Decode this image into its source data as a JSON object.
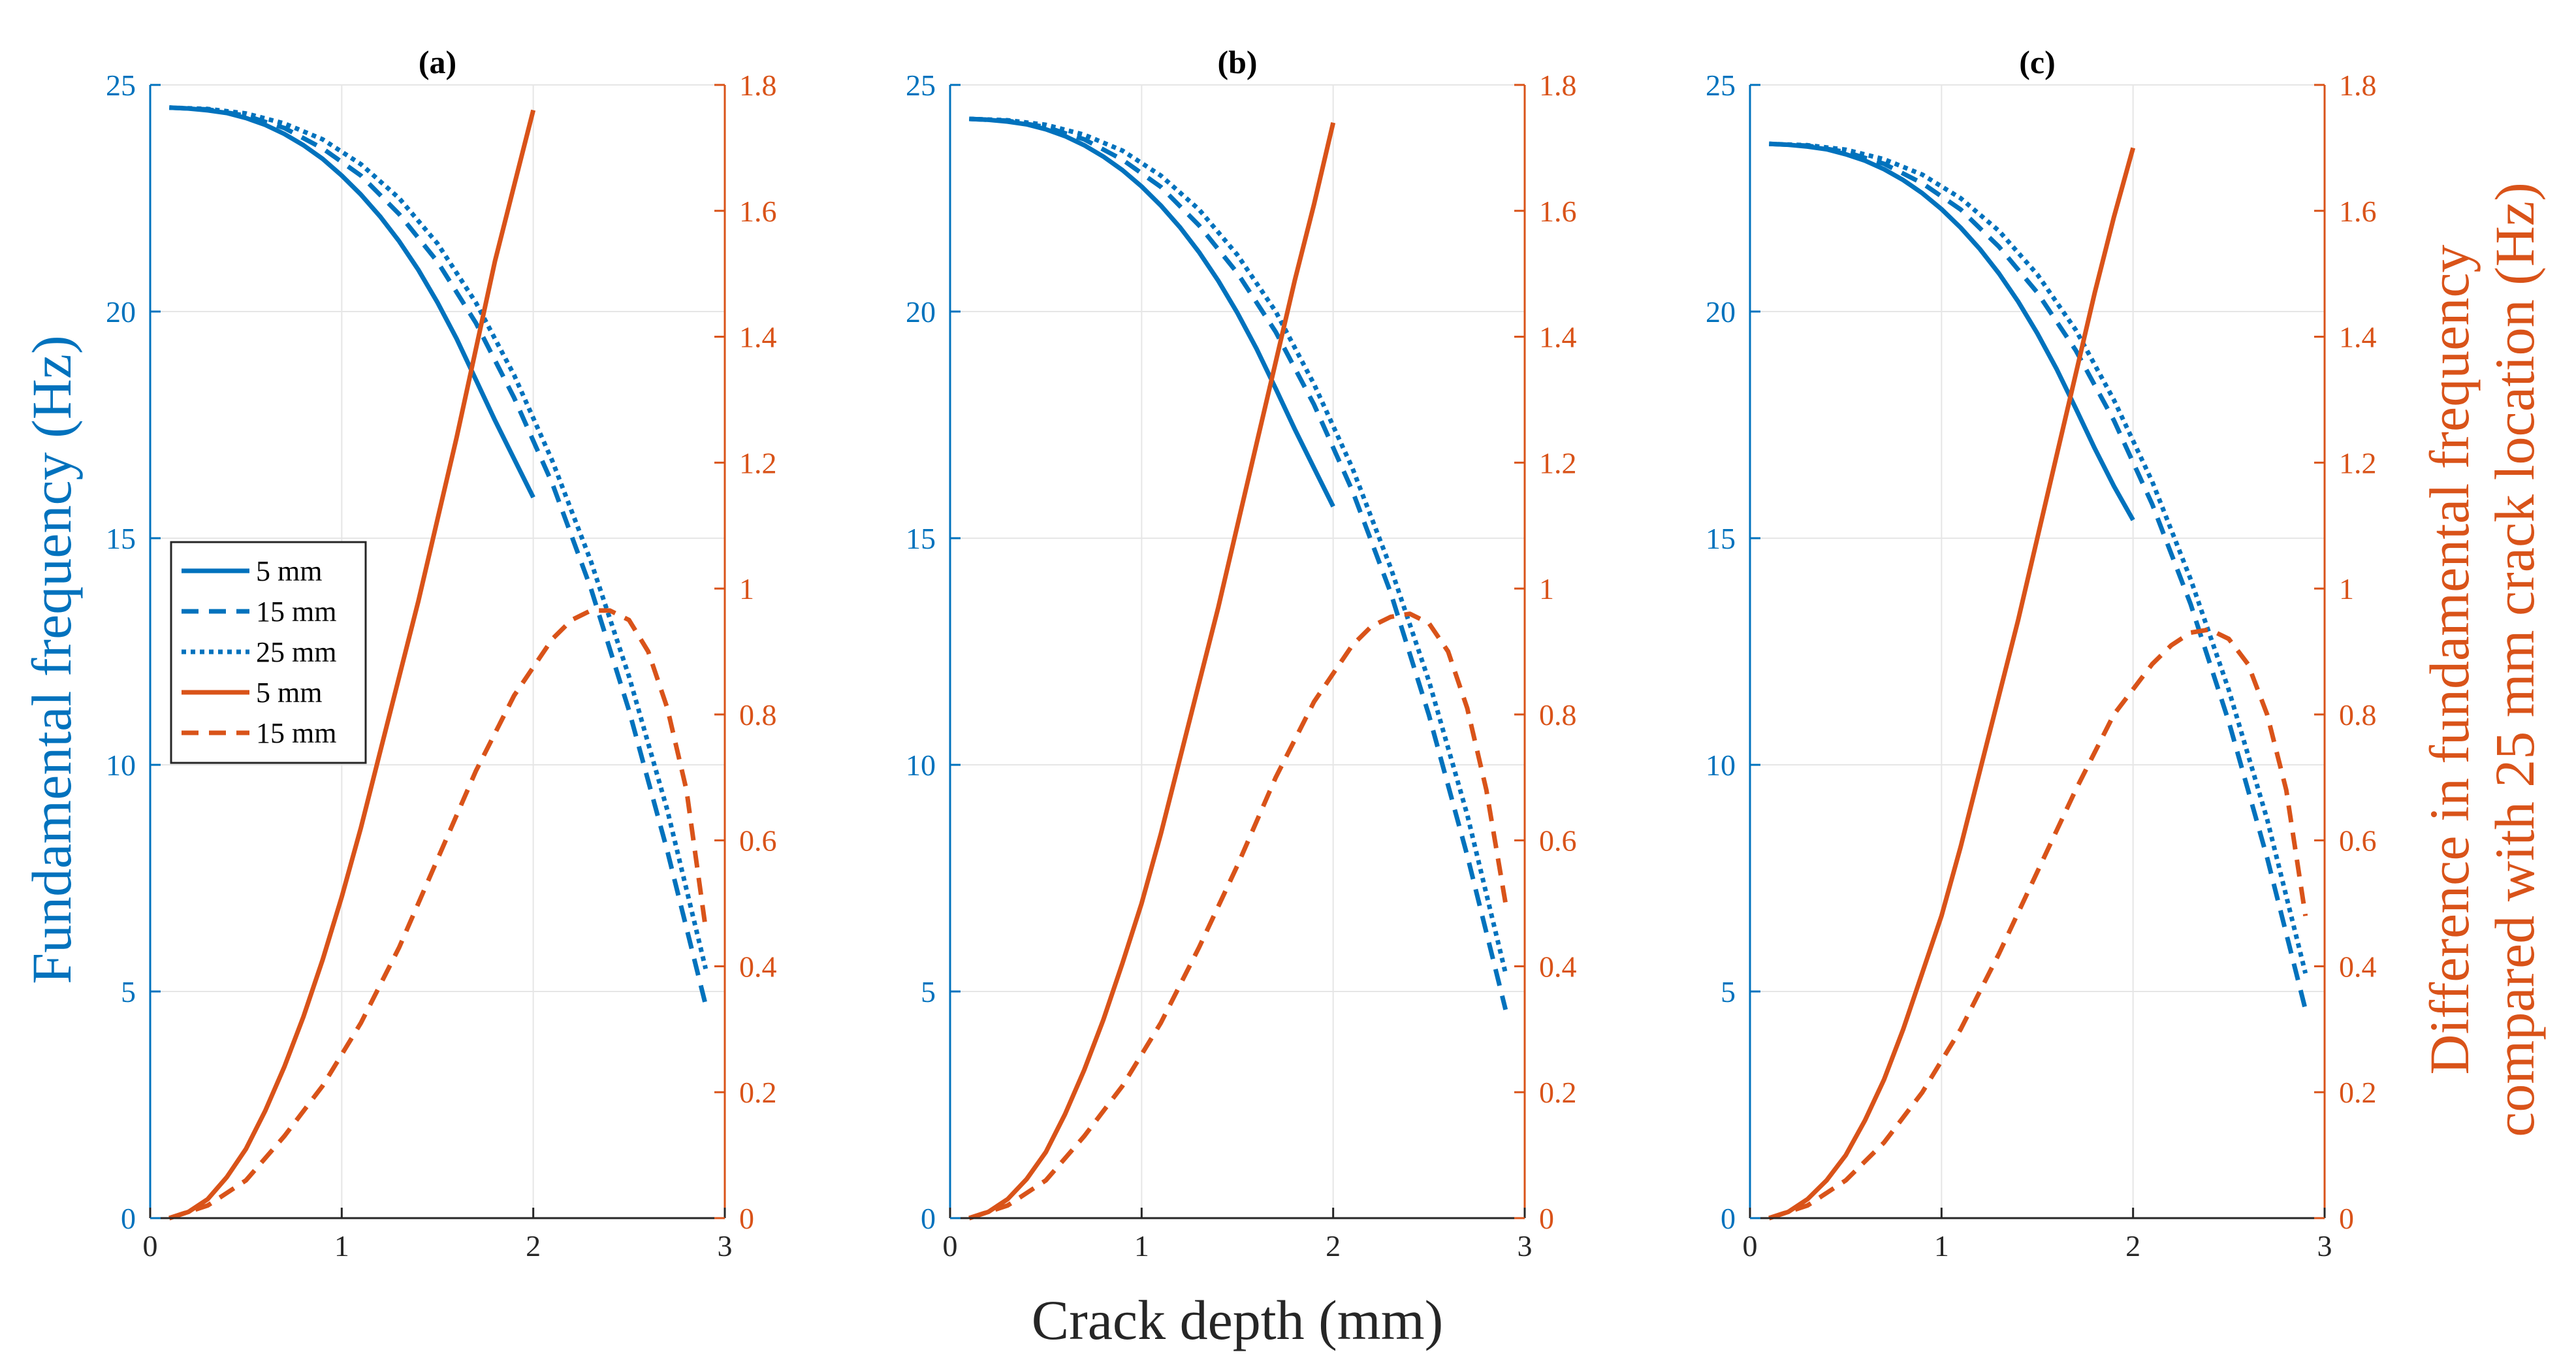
{
  "figure": {
    "xlabel": "Crack depth (mm)",
    "ylabel_left": "Fundamental frequency (Hz)",
    "ylabel_right_line1": "Difference in fundamental frequency",
    "ylabel_right_line2": "compared with 25 mm crack location (Hz)",
    "colors": {
      "left": "#0072BD",
      "right": "#D95319",
      "grid": "#e6e6e6"
    }
  },
  "legend": {
    "entries": [
      {
        "label": "5 mm",
        "color": "#0072BD",
        "style": "solid"
      },
      {
        "label": "15 mm",
        "color": "#0072BD",
        "style": "dashed"
      },
      {
        "label": "25 mm",
        "color": "#0072BD",
        "style": "dotted"
      },
      {
        "label": "5 mm",
        "color": "#D95319",
        "style": "solid"
      },
      {
        "label": "15 mm",
        "color": "#D95319",
        "style": "dashed"
      }
    ]
  },
  "chart_data": [
    {
      "type": "line",
      "title": "(a)",
      "xlim": [
        0,
        3
      ],
      "xticks": [
        0,
        1,
        2,
        3
      ],
      "ylim_left": [
        0,
        25
      ],
      "yticks_left": [
        0,
        5,
        10,
        15,
        20,
        25
      ],
      "ylim_right": [
        0,
        1.8
      ],
      "yticks_right": [
        0,
        0.2,
        0.4,
        0.6,
        0.8,
        1,
        1.2,
        1.4,
        1.6,
        1.8
      ],
      "grid": true,
      "left_series": [
        {
          "name": "5 mm",
          "style": "solid",
          "x": [
            0.1,
            0.2,
            0.3,
            0.4,
            0.5,
            0.6,
            0.7,
            0.8,
            0.9,
            1.0,
            1.1,
            1.2,
            1.3,
            1.4,
            1.5,
            1.6,
            1.7,
            1.8,
            1.9,
            2.0
          ],
          "y": [
            24.5,
            24.48,
            24.44,
            24.38,
            24.27,
            24.12,
            23.92,
            23.67,
            23.37,
            23.0,
            22.58,
            22.1,
            21.55,
            20.92,
            20.2,
            19.4,
            18.5,
            17.6,
            16.75,
            15.9
          ]
        },
        {
          "name": "15 mm",
          "style": "dashed",
          "x": [
            0.1,
            0.3,
            0.5,
            0.7,
            0.9,
            1.1,
            1.3,
            1.5,
            1.7,
            1.9,
            2.1,
            2.3,
            2.5,
            2.7,
            2.9
          ],
          "y": [
            24.5,
            24.46,
            24.32,
            24.05,
            23.6,
            23.0,
            22.15,
            21.1,
            19.75,
            18.1,
            16.2,
            13.9,
            11.2,
            8.1,
            4.7
          ]
        },
        {
          "name": "25 mm",
          "style": "dotted",
          "x": [
            0.1,
            0.3,
            0.5,
            0.7,
            0.9,
            1.1,
            1.3,
            1.5,
            1.7,
            1.9,
            2.1,
            2.3,
            2.5,
            2.7,
            2.9
          ],
          "y": [
            24.5,
            24.47,
            24.37,
            24.15,
            23.8,
            23.25,
            22.5,
            21.5,
            20.2,
            18.6,
            16.7,
            14.5,
            11.95,
            9.0,
            5.5
          ]
        }
      ],
      "right_series": [
        {
          "name": "5 mm",
          "style": "solid",
          "x": [
            0.1,
            0.2,
            0.3,
            0.4,
            0.5,
            0.6,
            0.7,
            0.8,
            0.9,
            1.0,
            1.1,
            1.2,
            1.3,
            1.4,
            1.5,
            1.6,
            1.7,
            1.8,
            1.9,
            2.0
          ],
          "y": [
            0.0,
            0.01,
            0.03,
            0.065,
            0.11,
            0.17,
            0.24,
            0.32,
            0.41,
            0.51,
            0.62,
            0.74,
            0.86,
            0.98,
            1.11,
            1.24,
            1.38,
            1.52,
            1.64,
            1.76
          ]
        },
        {
          "name": "15 mm",
          "style": "dashed",
          "x": [
            0.1,
            0.3,
            0.5,
            0.7,
            0.9,
            1.1,
            1.3,
            1.5,
            1.7,
            1.9,
            2.1,
            2.2,
            2.3,
            2.4,
            2.5,
            2.6,
            2.7,
            2.8,
            2.9
          ],
          "y": [
            0.0,
            0.02,
            0.06,
            0.13,
            0.21,
            0.31,
            0.43,
            0.57,
            0.71,
            0.83,
            0.92,
            0.95,
            0.965,
            0.965,
            0.95,
            0.9,
            0.81,
            0.68,
            0.46
          ]
        }
      ]
    },
    {
      "type": "line",
      "title": "(b)",
      "xlim": [
        0,
        3
      ],
      "xticks": [
        0,
        1,
        2,
        3
      ],
      "ylim_left": [
        0,
        25
      ],
      "yticks_left": [
        0,
        5,
        10,
        15,
        20,
        25
      ],
      "ylim_right": [
        0,
        1.8
      ],
      "yticks_right": [
        0,
        0.2,
        0.4,
        0.6,
        0.8,
        1,
        1.2,
        1.4,
        1.6,
        1.8
      ],
      "grid": true,
      "left_series": [
        {
          "name": "5 mm",
          "style": "solid",
          "x": [
            0.1,
            0.2,
            0.3,
            0.4,
            0.5,
            0.6,
            0.7,
            0.8,
            0.9,
            1.0,
            1.1,
            1.2,
            1.3,
            1.4,
            1.5,
            1.6,
            1.7,
            1.8,
            1.9,
            2.0
          ],
          "y": [
            24.25,
            24.23,
            24.19,
            24.13,
            24.02,
            23.87,
            23.67,
            23.42,
            23.12,
            22.76,
            22.34,
            21.86,
            21.31,
            20.68,
            19.97,
            19.18,
            18.3,
            17.4,
            16.55,
            15.7
          ]
        },
        {
          "name": "15 mm",
          "style": "dashed",
          "x": [
            0.1,
            0.3,
            0.5,
            0.7,
            0.9,
            1.1,
            1.3,
            1.5,
            1.7,
            1.9,
            2.1,
            2.3,
            2.5,
            2.7,
            2.9
          ],
          "y": [
            24.25,
            24.21,
            24.07,
            23.8,
            23.35,
            22.75,
            21.9,
            20.85,
            19.55,
            17.95,
            16.05,
            13.8,
            11.1,
            8.0,
            4.6
          ]
        },
        {
          "name": "25 mm",
          "style": "dotted",
          "x": [
            0.1,
            0.3,
            0.5,
            0.7,
            0.9,
            1.1,
            1.3,
            1.5,
            1.7,
            1.9,
            2.1,
            2.3,
            2.5,
            2.7,
            2.9
          ],
          "y": [
            24.25,
            24.22,
            24.12,
            23.9,
            23.55,
            23.0,
            22.25,
            21.25,
            20.0,
            18.4,
            16.55,
            14.35,
            11.85,
            8.9,
            5.4
          ]
        }
      ],
      "right_series": [
        {
          "name": "5 mm",
          "style": "solid",
          "x": [
            0.1,
            0.2,
            0.3,
            0.4,
            0.5,
            0.6,
            0.7,
            0.8,
            0.9,
            1.0,
            1.1,
            1.2,
            1.3,
            1.4,
            1.5,
            1.6,
            1.7,
            1.8,
            1.9,
            2.0
          ],
          "y": [
            0.0,
            0.01,
            0.03,
            0.062,
            0.105,
            0.165,
            0.235,
            0.315,
            0.405,
            0.5,
            0.61,
            0.73,
            0.85,
            0.97,
            1.1,
            1.23,
            1.36,
            1.49,
            1.61,
            1.74
          ]
        },
        {
          "name": "15 mm",
          "style": "dashed",
          "x": [
            0.1,
            0.3,
            0.5,
            0.7,
            0.9,
            1.1,
            1.3,
            1.5,
            1.7,
            1.9,
            2.1,
            2.2,
            2.3,
            2.4,
            2.5,
            2.6,
            2.7,
            2.8,
            2.9
          ],
          "y": [
            0.0,
            0.02,
            0.06,
            0.13,
            0.21,
            0.31,
            0.43,
            0.56,
            0.7,
            0.82,
            0.91,
            0.94,
            0.955,
            0.96,
            0.945,
            0.9,
            0.81,
            0.68,
            0.5
          ]
        }
      ]
    },
    {
      "type": "line",
      "title": "(c)",
      "xlim": [
        0,
        3
      ],
      "xticks": [
        0,
        1,
        2,
        3
      ],
      "ylim_left": [
        0,
        25
      ],
      "yticks_left": [
        0,
        5,
        10,
        15,
        20,
        25
      ],
      "ylim_right": [
        0,
        1.8
      ],
      "yticks_right": [
        0,
        0.2,
        0.4,
        0.6,
        0.8,
        1,
        1.2,
        1.4,
        1.6,
        1.8
      ],
      "grid": true,
      "left_series": [
        {
          "name": "5 mm",
          "style": "solid",
          "x": [
            0.1,
            0.2,
            0.3,
            0.4,
            0.5,
            0.6,
            0.7,
            0.8,
            0.9,
            1.0,
            1.1,
            1.2,
            1.3,
            1.4,
            1.5,
            1.6,
            1.7,
            1.8,
            1.9,
            2.0
          ],
          "y": [
            23.7,
            23.68,
            23.64,
            23.58,
            23.47,
            23.33,
            23.14,
            22.9,
            22.61,
            22.26,
            21.85,
            21.38,
            20.84,
            20.22,
            19.52,
            18.74,
            17.87,
            16.98,
            16.15,
            15.4
          ]
        },
        {
          "name": "15 mm",
          "style": "dashed",
          "x": [
            0.1,
            0.3,
            0.5,
            0.7,
            0.9,
            1.1,
            1.3,
            1.5,
            1.7,
            1.9,
            2.1,
            2.3,
            2.5,
            2.7,
            2.9
          ],
          "y": [
            23.7,
            23.66,
            23.52,
            23.26,
            22.83,
            22.25,
            21.43,
            20.42,
            19.15,
            17.6,
            15.75,
            13.55,
            10.95,
            7.95,
            4.6
          ]
        },
        {
          "name": "25 mm",
          "style": "dotted",
          "x": [
            0.1,
            0.3,
            0.5,
            0.7,
            0.9,
            1.1,
            1.3,
            1.5,
            1.7,
            1.9,
            2.1,
            2.3,
            2.5,
            2.7,
            2.9
          ],
          "y": [
            23.7,
            23.67,
            23.57,
            23.36,
            23.02,
            22.5,
            21.78,
            20.82,
            19.6,
            18.05,
            16.25,
            14.1,
            11.65,
            8.8,
            5.4
          ]
        }
      ],
      "right_series": [
        {
          "name": "5 mm",
          "style": "solid",
          "x": [
            0.1,
            0.2,
            0.3,
            0.4,
            0.5,
            0.6,
            0.7,
            0.8,
            0.9,
            1.0,
            1.1,
            1.2,
            1.3,
            1.4,
            1.5,
            1.6,
            1.7,
            1.8,
            1.9,
            2.0
          ],
          "y": [
            0.0,
            0.01,
            0.03,
            0.06,
            0.1,
            0.155,
            0.22,
            0.3,
            0.39,
            0.48,
            0.59,
            0.71,
            0.83,
            0.95,
            1.08,
            1.21,
            1.34,
            1.47,
            1.59,
            1.7
          ]
        },
        {
          "name": "15 mm",
          "style": "dashed",
          "x": [
            0.1,
            0.3,
            0.5,
            0.7,
            0.9,
            1.1,
            1.3,
            1.5,
            1.7,
            1.9,
            2.1,
            2.2,
            2.3,
            2.4,
            2.5,
            2.6,
            2.7,
            2.8,
            2.9
          ],
          "y": [
            0.0,
            0.02,
            0.06,
            0.12,
            0.2,
            0.3,
            0.42,
            0.55,
            0.68,
            0.8,
            0.88,
            0.91,
            0.93,
            0.935,
            0.92,
            0.88,
            0.8,
            0.68,
            0.48
          ]
        }
      ]
    }
  ]
}
